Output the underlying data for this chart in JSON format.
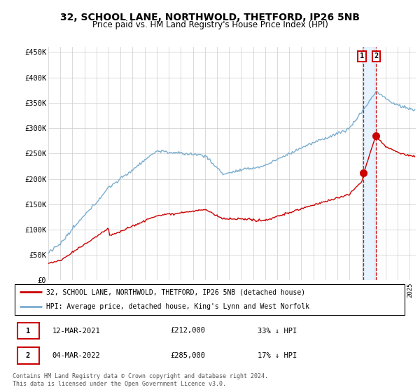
{
  "title": "32, SCHOOL LANE, NORTHWOLD, THETFORD, IP26 5NB",
  "subtitle": "Price paid vs. HM Land Registry's House Price Index (HPI)",
  "title_fontsize": 10,
  "subtitle_fontsize": 8.5,
  "ylabel_ticks": [
    "£0",
    "£50K",
    "£100K",
    "£150K",
    "£200K",
    "£250K",
    "£300K",
    "£350K",
    "£400K",
    "£450K"
  ],
  "ytick_values": [
    0,
    50000,
    100000,
    150000,
    200000,
    250000,
    300000,
    350000,
    400000,
    450000
  ],
  "ylim": [
    0,
    460000
  ],
  "xlim_start": 1995.0,
  "xlim_end": 2025.5,
  "line1_color": "#cc0000",
  "line2_color": "#7aadcf",
  "vline_color": "#cc0000",
  "shade_color": "#ddeeff",
  "marker_color": "#cc0000",
  "annotation_box_color": "#cc0000",
  "legend_line1": "32, SCHOOL LANE, NORTHWOLD, THETFORD, IP26 5NB (detached house)",
  "legend_line2": "HPI: Average price, detached house, King's Lynn and West Norfolk",
  "note1_num": "1",
  "note1_date": "12-MAR-2021",
  "note1_price": "£212,000",
  "note1_pct": "33% ↓ HPI",
  "note2_num": "2",
  "note2_date": "04-MAR-2022",
  "note2_price": "£285,000",
  "note2_pct": "17% ↓ HPI",
  "footer": "Contains HM Land Registry data © Crown copyright and database right 2024.\nThis data is licensed under the Open Government Licence v3.0.",
  "sale1_x": 2021.17,
  "sale1_y": 212000,
  "sale2_x": 2022.17,
  "sale2_y": 285000
}
